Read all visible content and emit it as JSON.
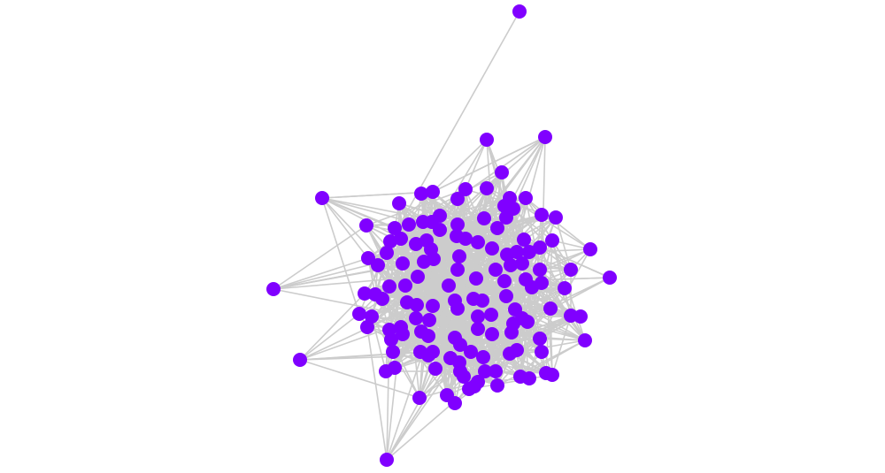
{
  "graph": {
    "type": "network",
    "node_color": "#8000ff",
    "edge_color": "#cccccc",
    "background": "#ffffff"
  }
}
